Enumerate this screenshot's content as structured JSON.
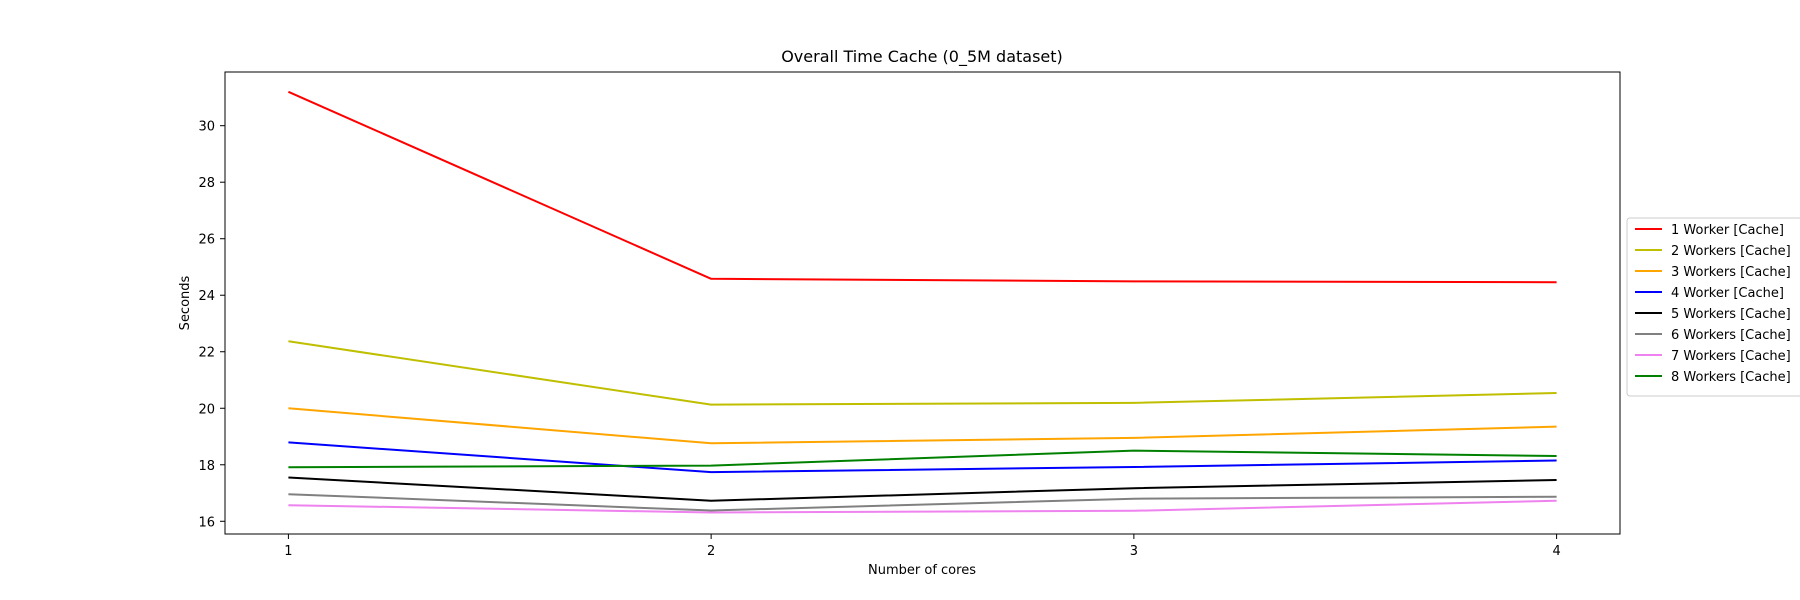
{
  "chart_data": {
    "type": "line",
    "title": "Overall Time Cache (0_5M dataset)",
    "xlabel": "Number of cores",
    "ylabel": "Seconds",
    "x": [
      1,
      2,
      3,
      4
    ],
    "xticks": [
      "1",
      "2",
      "3",
      "4"
    ],
    "yticks": [
      16,
      18,
      20,
      22,
      24,
      26,
      28,
      30
    ],
    "xlim": [
      0.85,
      4.15
    ],
    "ylim": [
      15.55,
      31.9
    ],
    "grid": false,
    "legend_position": "right, outside plot area",
    "series": [
      {
        "name": "1 Worker [Cache]",
        "color": "#ff0000",
        "values": [
          31.2,
          24.58,
          24.49,
          24.46
        ]
      },
      {
        "name": "2 Workers [Cache]",
        "color": "#bfbf00",
        "values": [
          22.37,
          20.13,
          20.19,
          20.54
        ]
      },
      {
        "name": "3 Workers [Cache]",
        "color": "#ffa500",
        "values": [
          20.0,
          18.76,
          18.95,
          19.35
        ]
      },
      {
        "name": "4 Worker [Cache]",
        "color": "#0000ff",
        "values": [
          18.79,
          17.74,
          17.92,
          18.15
        ]
      },
      {
        "name": "5 Workers [Cache]",
        "color": "#000000",
        "values": [
          17.55,
          16.73,
          17.17,
          17.46
        ]
      },
      {
        "name": "6 Workers [Cache]",
        "color": "#808080",
        "values": [
          16.96,
          16.38,
          16.8,
          16.87
        ]
      },
      {
        "name": "7 Workers [Cache]",
        "color": "#ee82ee",
        "values": [
          16.57,
          16.31,
          16.37,
          16.73
        ]
      },
      {
        "name": "8 Workers [Cache]",
        "color": "#008000",
        "values": [
          17.91,
          17.97,
          18.5,
          18.31
        ]
      }
    ]
  }
}
